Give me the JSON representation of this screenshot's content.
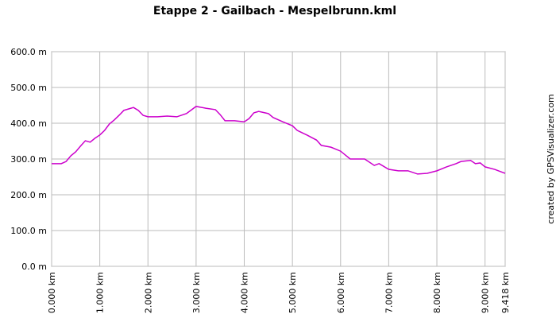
{
  "chart_data": {
    "type": "line",
    "title": "Etappe 2 - Gailbach - Mespelbrunn.kml",
    "credit": "created by GPSVisualizer.com",
    "x": [
      0,
      0.2,
      0.3,
      0.4,
      0.5,
      0.6,
      0.7,
      0.8,
      0.9,
      1.0,
      1.1,
      1.2,
      1.3,
      1.4,
      1.5,
      1.6,
      1.7,
      1.8,
      1.9,
      2.0,
      2.2,
      2.4,
      2.6,
      2.8,
      3.0,
      3.2,
      3.4,
      3.5,
      3.6,
      3.8,
      4.0,
      4.1,
      4.2,
      4.3,
      4.5,
      4.6,
      4.8,
      5.0,
      5.1,
      5.3,
      5.5,
      5.6,
      5.8,
      6.0,
      6.2,
      6.3,
      6.5,
      6.7,
      6.8,
      7.0,
      7.2,
      7.4,
      7.6,
      7.8,
      8.0,
      8.2,
      8.4,
      8.5,
      8.7,
      8.8,
      8.9,
      9.0,
      9.2,
      9.418
    ],
    "series": [
      {
        "color": "#cc00cc",
        "values": [
          287,
          287,
          293,
          309,
          320,
          336,
          351,
          347,
          358,
          367,
          380,
          398,
          409,
          422,
          436,
          440,
          444,
          436,
          422,
          418,
          418,
          420,
          418,
          427,
          447,
          442,
          438,
          424,
          407,
          407,
          404,
          413,
          429,
          433,
          427,
          416,
          404,
          393,
          380,
          367,
          353,
          338,
          333,
          322,
          300,
          300,
          300,
          282,
          287,
          271,
          267,
          267,
          258,
          260,
          267,
          278,
          287,
          293,
          296,
          287,
          289,
          278,
          271,
          260
        ]
      }
    ],
    "xlim": [
      0,
      9.418
    ],
    "xticks": [
      {
        "value": 0,
        "label": "0.000 km"
      },
      {
        "value": 1,
        "label": "1.000 km"
      },
      {
        "value": 2,
        "label": "2.000 km"
      },
      {
        "value": 3,
        "label": "3.000 km"
      },
      {
        "value": 4,
        "label": "4.000 km"
      },
      {
        "value": 5,
        "label": "5.000 km"
      },
      {
        "value": 6,
        "label": "6.000 km"
      },
      {
        "value": 7,
        "label": "7.000 km"
      },
      {
        "value": 8,
        "label": "8.000 km"
      },
      {
        "value": 9,
        "label": "9.000 km"
      },
      {
        "value": 9.418,
        "label": "9.418 km"
      }
    ],
    "ylim": [
      0,
      600
    ],
    "yticks": [
      {
        "value": 0,
        "label": "0.0 m"
      },
      {
        "value": 100,
        "label": "100.0 m"
      },
      {
        "value": 200,
        "label": "200.0 m"
      },
      {
        "value": 300,
        "label": "300.0 m"
      },
      {
        "value": 400,
        "label": "400.0 m"
      },
      {
        "value": 500,
        "label": "500.0 m"
      },
      {
        "value": 600,
        "label": "600.0 m"
      }
    ],
    "grid": true
  }
}
